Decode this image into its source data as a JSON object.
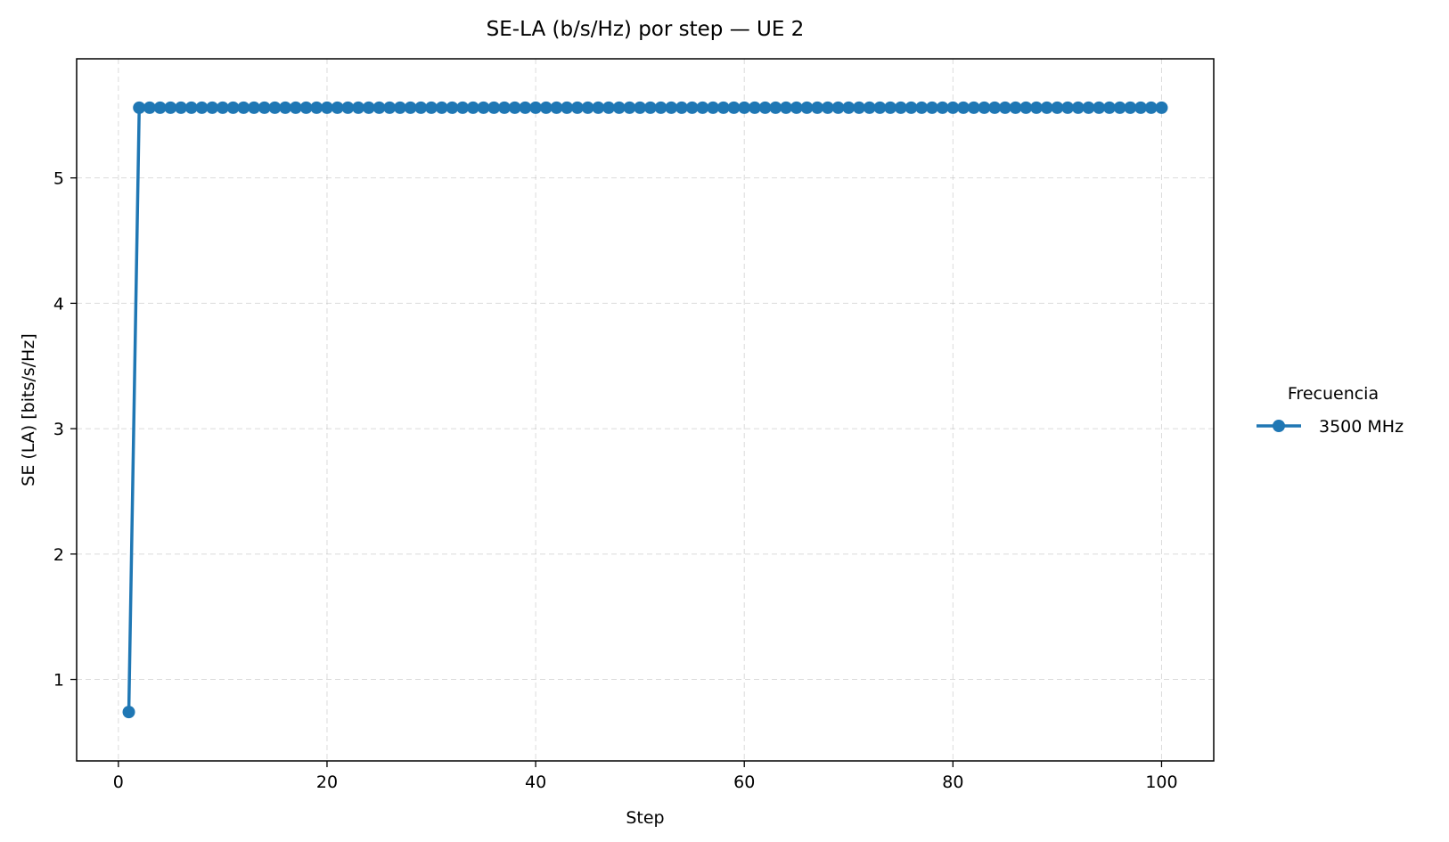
{
  "chart_data": {
    "type": "line",
    "title": "SE-LA (b/s/Hz) por step — UE 2",
    "xlabel": "Step",
    "ylabel": "SE (LA) [bits/s/Hz]",
    "xlim": [
      -4,
      105
    ],
    "ylim": [
      0.35,
      5.95
    ],
    "xticks": [
      0,
      20,
      40,
      60,
      80,
      100
    ],
    "yticks": [
      1,
      2,
      3,
      4,
      5
    ],
    "grid": true,
    "legend": {
      "title": "Frecuencia",
      "placement": "outside-right"
    },
    "series": [
      {
        "name": "3500 MHz",
        "color": "#1f77b4",
        "marker": "circle",
        "x_start": 1,
        "x_end": 100,
        "first_value": 0.74,
        "steady_value": 5.56
      }
    ]
  }
}
